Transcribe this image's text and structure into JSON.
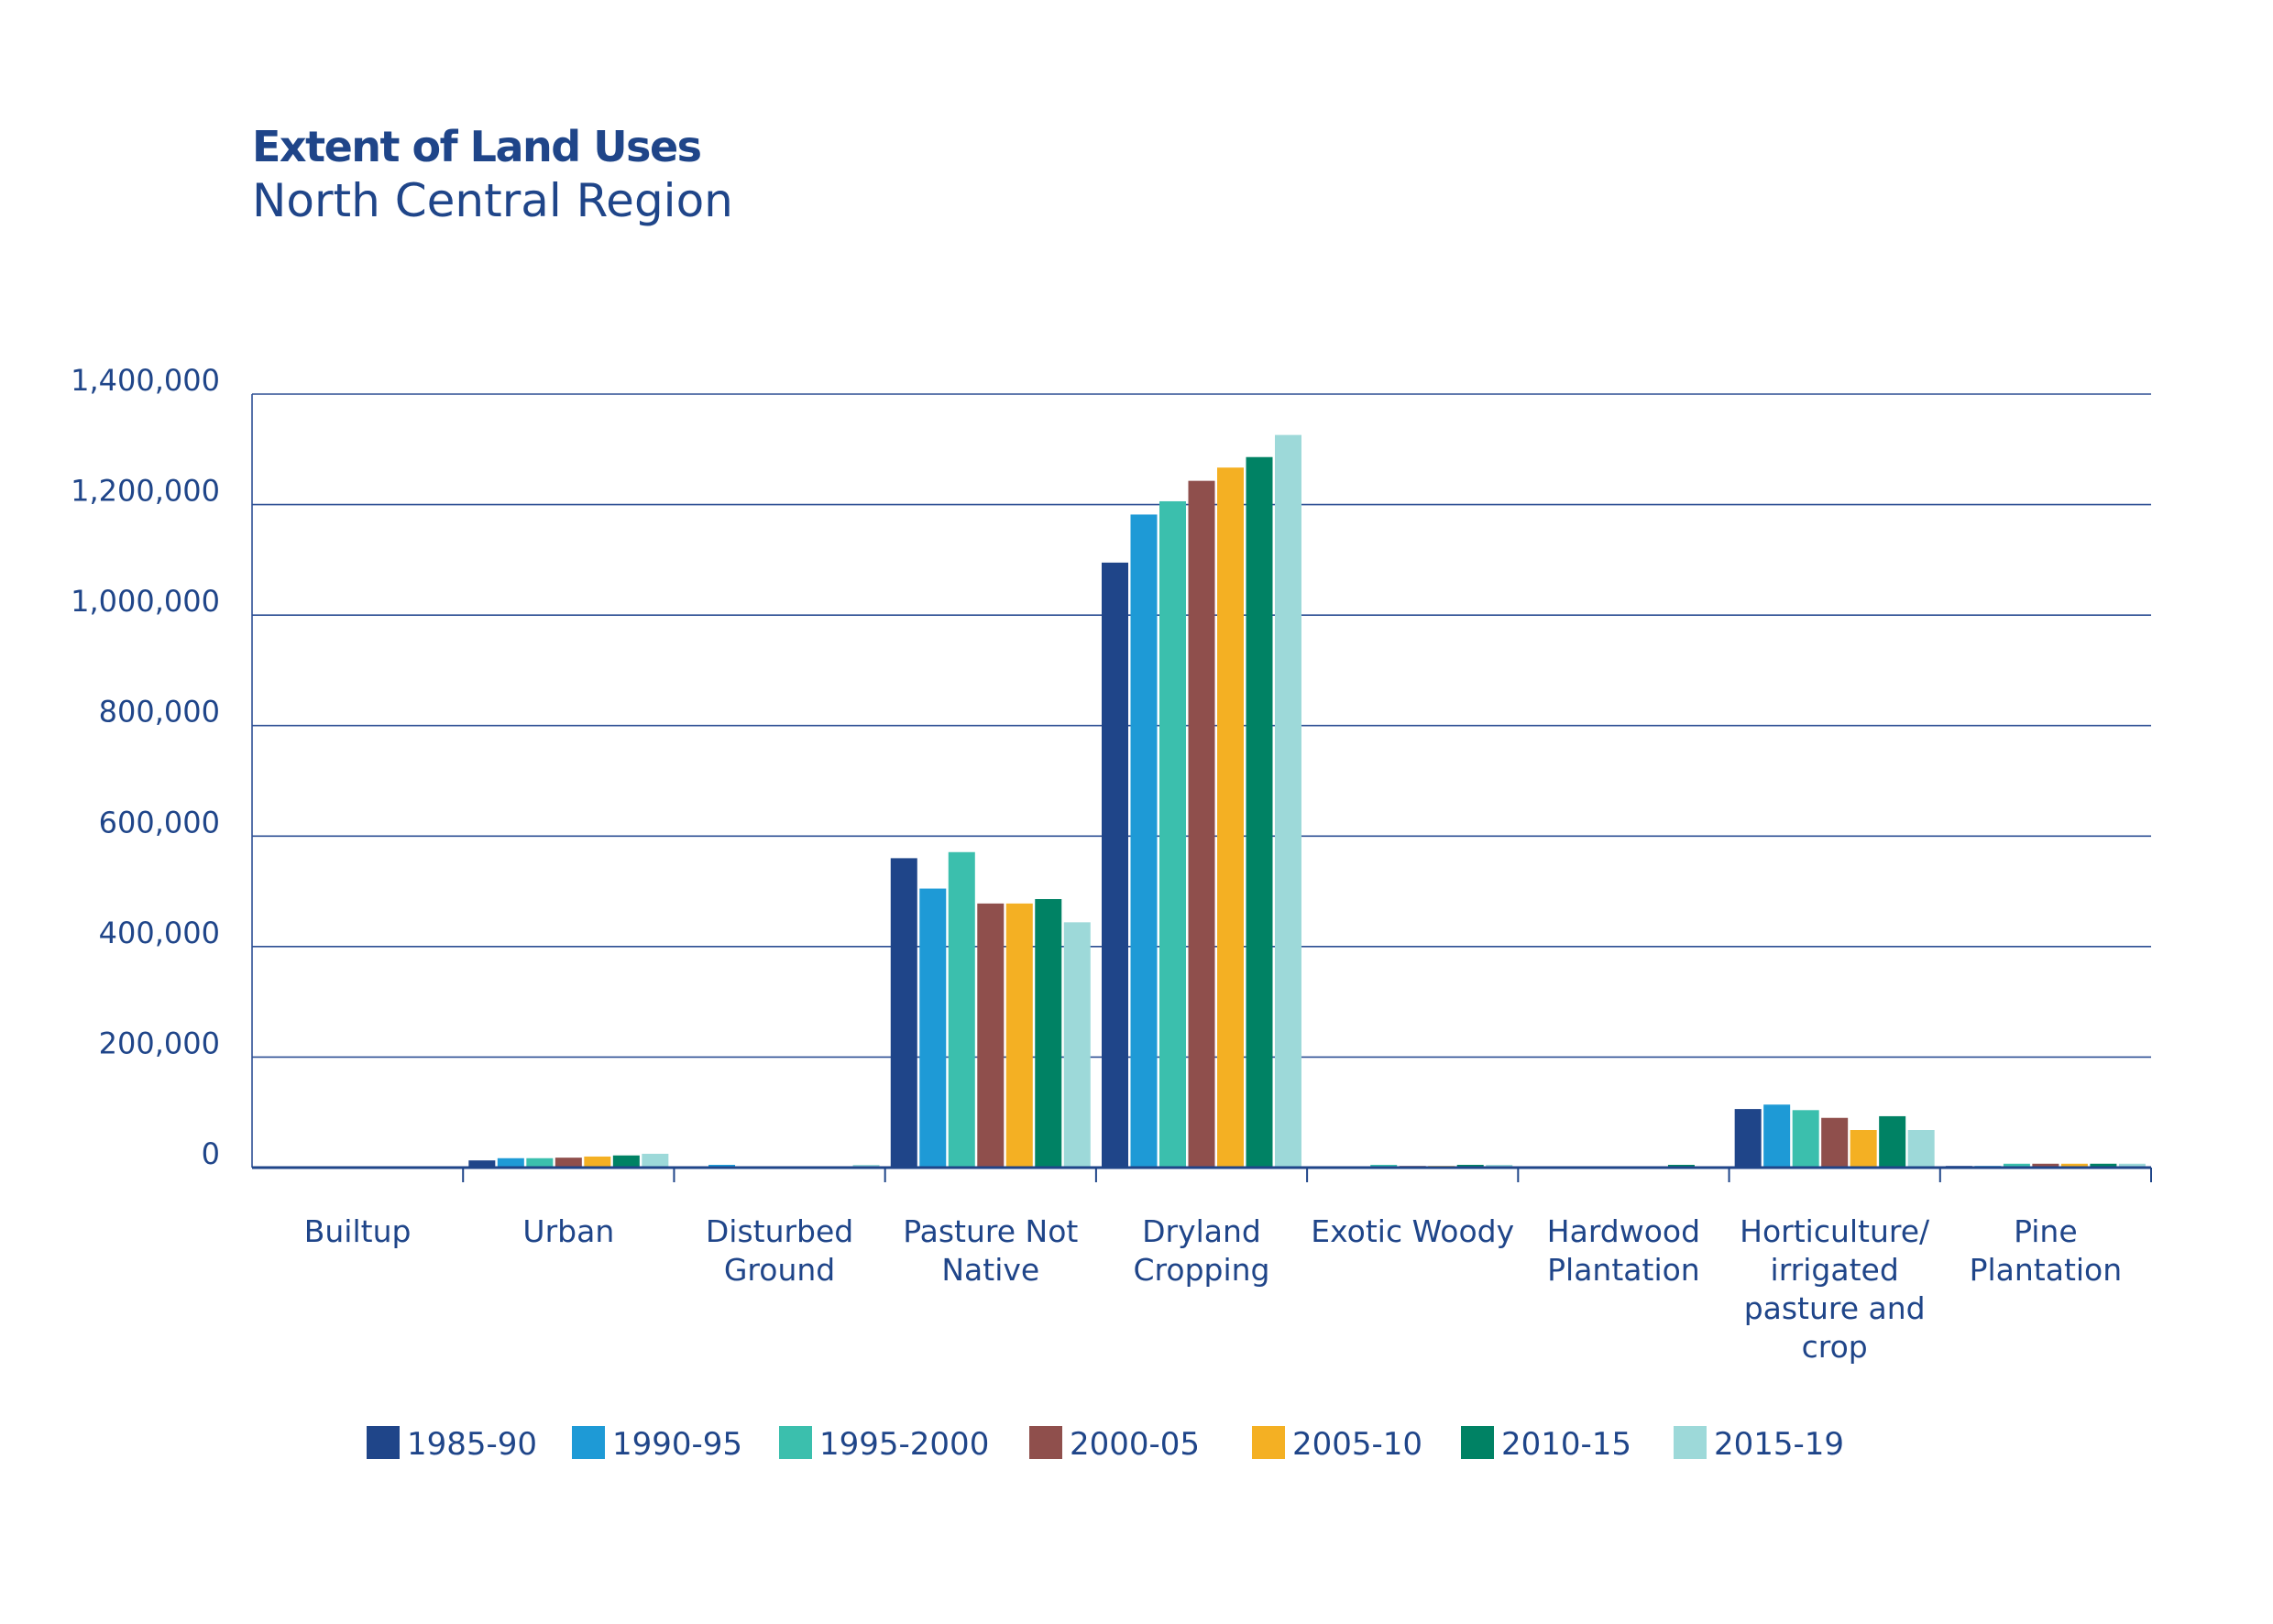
{
  "chart_data": {
    "type": "bar",
    "title": "Extent of Land Uses",
    "subtitle": "North Central Region",
    "xlabel": "",
    "ylabel": "",
    "ylim": [
      0,
      1400000
    ],
    "yticks": [
      0,
      200000,
      400000,
      600000,
      800000,
      1000000,
      1200000,
      1400000
    ],
    "ytick_labels": [
      "0",
      "200,000",
      "400,000",
      "600,000",
      "800,000",
      "1,000,000",
      "1,200,000",
      "1,400,000"
    ],
    "grid": true,
    "legend_position": "bottom",
    "categories": [
      [
        "Builtup"
      ],
      [
        "Urban"
      ],
      [
        "Disturbed",
        "Ground"
      ],
      [
        "Pasture Not",
        "Native"
      ],
      [
        "Dryland",
        "Cropping"
      ],
      [
        "Exotic Woody"
      ],
      [
        "Hardwood",
        "Plantation"
      ],
      [
        "Horticulture/",
        "irrigated",
        "pasture and",
        "crop"
      ],
      [
        "Pine",
        "Plantation"
      ]
    ],
    "series": [
      {
        "name": "1985-90",
        "color": "#1f4589",
        "values": [
          1000,
          13000,
          2000,
          560000,
          1095000,
          2000,
          0,
          106000,
          3000
        ]
      },
      {
        "name": "1990-95",
        "color": "#1e9ad6",
        "values": [
          1000,
          17000,
          5000,
          505000,
          1182000,
          2000,
          0,
          114000,
          3000
        ]
      },
      {
        "name": "1995-2000",
        "color": "#3bbfad",
        "values": [
          1000,
          17000,
          2000,
          571000,
          1206000,
          5000,
          0,
          104000,
          7000
        ]
      },
      {
        "name": "2000-05",
        "color": "#8f4f4c",
        "values": [
          1000,
          18000,
          2000,
          478000,
          1243000,
          3000,
          0,
          90000,
          7000
        ]
      },
      {
        "name": "2005-10",
        "color": "#f4b023",
        "values": [
          1000,
          20000,
          2000,
          478000,
          1267000,
          3000,
          2000,
          68000,
          7000
        ]
      },
      {
        "name": "2010-15",
        "color": "#008264",
        "values": [
          1000,
          22000,
          2000,
          486000,
          1286000,
          5000,
          5000,
          93000,
          7000
        ]
      },
      {
        "name": "2015-19",
        "color": "#9dd9d9",
        "values": [
          1000,
          25000,
          5000,
          444000,
          1326000,
          5000,
          2000,
          68000,
          7000
        ]
      }
    ]
  }
}
